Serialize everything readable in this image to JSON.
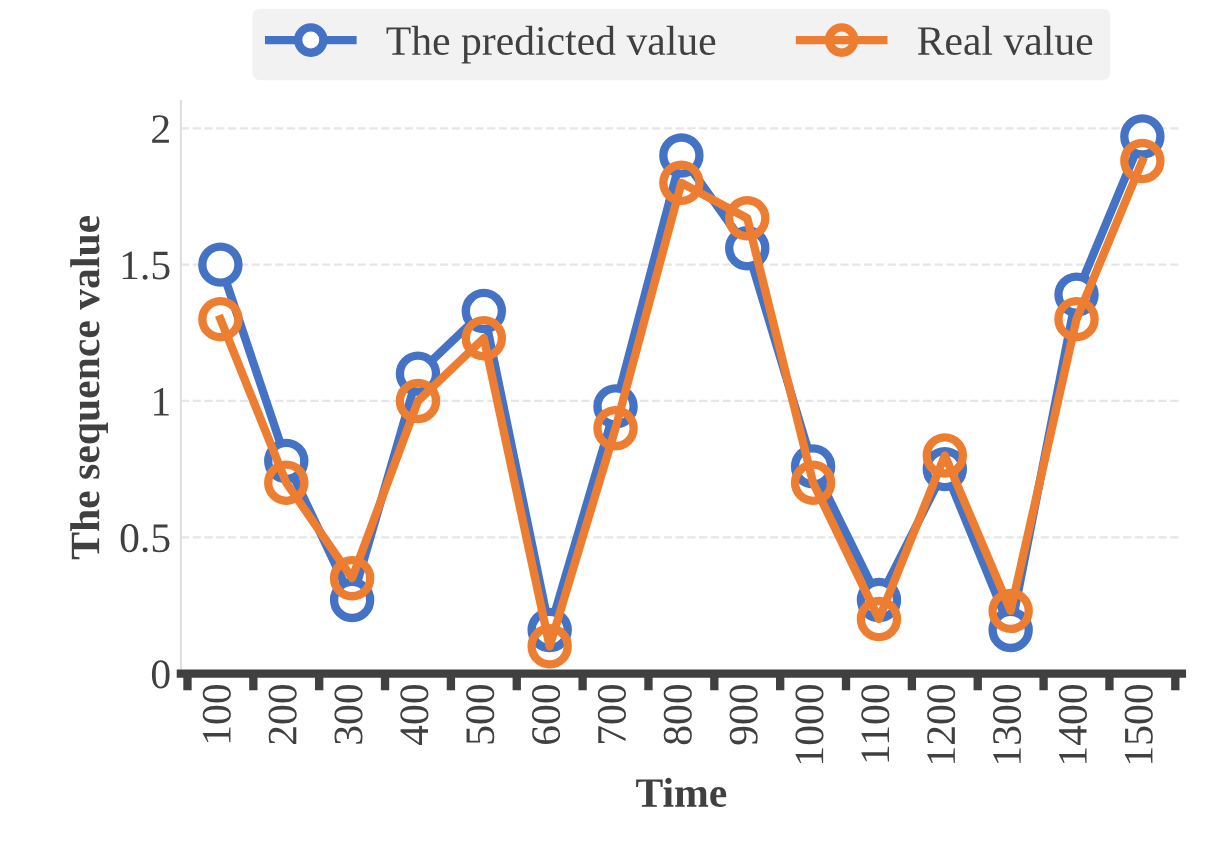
{
  "chart_data": {
    "type": "line",
    "xlabel": "Time",
    "ylabel": "The sequence value",
    "categories": [
      "100",
      "200",
      "300",
      "400",
      "500",
      "600",
      "700",
      "800",
      "900",
      "1000",
      "1100",
      "1200",
      "1300",
      "1400",
      "1500"
    ],
    "series": [
      {
        "name": "The predicted value",
        "color": "#4472c4",
        "values": [
          1.5,
          0.78,
          0.27,
          1.1,
          1.33,
          0.16,
          0.98,
          1.9,
          1.56,
          0.76,
          0.27,
          0.75,
          0.16,
          1.39,
          1.97
        ]
      },
      {
        "name": "Real value",
        "color": "#ed7d31",
        "values": [
          1.3,
          0.7,
          0.35,
          1.0,
          1.23,
          0.1,
          0.9,
          1.8,
          1.67,
          0.7,
          0.2,
          0.8,
          0.23,
          1.3,
          1.88
        ]
      }
    ],
    "ylim": [
      0,
      2.1
    ],
    "yticks": [
      0,
      0.5,
      1,
      {
        "value": 1.5,
        "label": "1.5"
      },
      2
    ],
    "grid": "y",
    "legend": "top",
    "marker": "circle",
    "line_style": "solid"
  }
}
